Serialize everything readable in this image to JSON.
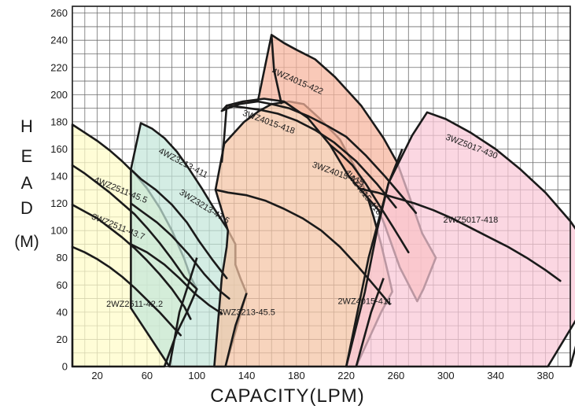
{
  "chart_data": {
    "type": "line",
    "title": "",
    "ylabel_letters": [
      "H",
      "E",
      "A",
      "D"
    ],
    "ylabel_unit": "(M)",
    "xlabel": "CAPACITY(LPM)",
    "x_ticks": [
      "20",
      "60",
      "100",
      "140",
      "180",
      "220",
      "260",
      "300",
      "340",
      "380"
    ],
    "y_ticks": [
      "0",
      "20",
      "40",
      "60",
      "80",
      "100",
      "120",
      "140",
      "160",
      "180",
      "200",
      "220",
      "240",
      "260"
    ],
    "grid": true,
    "x_range": [
      0,
      400
    ],
    "y_range": [
      0,
      265
    ],
    "regions": [
      {
        "name": "2WZ2511",
        "color": "#fffcc8",
        "outline": [
          [
            0,
            0
          ],
          [
            0,
            178
          ],
          [
            10,
            172
          ],
          [
            20,
            166
          ],
          [
            30,
            159
          ],
          [
            40,
            151
          ],
          [
            50,
            142
          ],
          [
            60,
            131
          ],
          [
            70,
            117
          ],
          [
            80,
            100
          ],
          [
            90,
            79
          ],
          [
            95,
            66
          ],
          [
            100,
            57
          ],
          [
            92,
            40
          ],
          [
            84,
            25
          ],
          [
            74,
            0
          ]
        ]
      },
      {
        "name": "2WZ3213",
        "color": "#c4e6d9",
        "outline": [
          [
            47,
            43
          ],
          [
            47,
            55
          ],
          [
            47,
            90
          ],
          [
            47,
            120
          ],
          [
            47,
            145
          ],
          [
            55,
            179
          ],
          [
            64,
            175
          ],
          [
            74,
            168
          ],
          [
            84,
            158
          ],
          [
            94,
            145
          ],
          [
            104,
            131
          ],
          [
            114,
            116
          ],
          [
            124,
            102
          ],
          [
            131,
            90
          ],
          [
            131,
            75
          ],
          [
            135,
            65
          ],
          [
            140,
            54
          ],
          [
            123,
            0
          ],
          [
            78,
            0
          ]
        ]
      },
      {
        "name": "2WZ4015",
        "color": "#f4c4a4",
        "outline": [
          [
            114,
            0
          ],
          [
            120,
            65
          ],
          [
            124,
            88
          ],
          [
            125,
            100
          ],
          [
            115,
            130
          ],
          [
            122,
            164
          ],
          [
            138,
            180
          ],
          [
            150,
            188
          ],
          [
            160,
            193
          ],
          [
            174,
            195
          ],
          [
            186,
            193
          ],
          [
            198,
            183
          ],
          [
            215,
            167
          ],
          [
            228,
            145
          ],
          [
            236,
            128
          ],
          [
            242,
            110
          ],
          [
            248,
            90
          ],
          [
            254,
            67
          ],
          [
            257,
            55
          ],
          [
            248,
            40
          ],
          [
            228,
            0
          ]
        ]
      },
      {
        "name": "4WZ4015",
        "color": "#f6b49c",
        "outline": [
          [
            120,
            188
          ],
          [
            125,
            190
          ],
          [
            134,
            193
          ],
          [
            149,
            195
          ],
          [
            160,
            244
          ],
          [
            170,
            238
          ],
          [
            180,
            233
          ],
          [
            195,
            226
          ],
          [
            211,
            213
          ],
          [
            232,
            192
          ],
          [
            250,
            168
          ],
          [
            261,
            150
          ],
          [
            270,
            127
          ],
          [
            281,
            98
          ],
          [
            292,
            80
          ],
          [
            282,
            57
          ],
          [
            277,
            48
          ],
          [
            263,
            73
          ],
          [
            251,
            104
          ],
          [
            246,
            115
          ],
          [
            222,
            140
          ],
          [
            207,
            163
          ],
          [
            189,
            183
          ],
          [
            170,
            195
          ],
          [
            154,
            197
          ],
          [
            137,
            195
          ],
          [
            124,
            192
          ]
        ]
      },
      {
        "name": "3WZ5017",
        "color": "#f9c8d7",
        "outline": [
          [
            220,
            0
          ],
          [
            235,
            55
          ],
          [
            245,
            101
          ],
          [
            254,
            135
          ],
          [
            273,
            170
          ],
          [
            285,
            187
          ],
          [
            300,
            182
          ],
          [
            320,
            172
          ],
          [
            340,
            160
          ],
          [
            360,
            145
          ],
          [
            380,
            128
          ],
          [
            400,
            107
          ],
          [
            415,
            87
          ],
          [
            428,
            68
          ],
          [
            415,
            50
          ],
          [
            382,
            0
          ]
        ]
      }
    ],
    "boundaries": [
      {
        "name": "2WZ2511 right",
        "points": [
          [
            100,
            57
          ],
          [
            92,
            40
          ],
          [
            84,
            25
          ],
          [
            74,
            0
          ]
        ]
      },
      {
        "name": "2WZ3213 right",
        "points": [
          [
            140,
            54
          ],
          [
            131,
            30
          ],
          [
            123,
            0
          ]
        ]
      },
      {
        "name": "2WZ4015 left",
        "points": [
          [
            78,
            0
          ],
          [
            86,
            40
          ],
          [
            100,
            80
          ]
        ]
      },
      {
        "name": "2WZ4015 right",
        "points": [
          [
            250,
            65
          ],
          [
            240,
            40
          ],
          [
            228,
            0
          ]
        ]
      },
      {
        "name": "3WZ5017 left",
        "points": [
          [
            220,
            0
          ],
          [
            238,
            80
          ],
          [
            254,
            135
          ],
          [
            265,
            160
          ]
        ]
      },
      {
        "name": "3WZ5017 right",
        "points": [
          [
            428,
            68
          ],
          [
            415,
            50
          ],
          [
            400,
            0
          ]
        ]
      },
      {
        "name": "4WZ4015 left",
        "points": [
          [
            168,
            193
          ],
          [
            162,
            218
          ],
          [
            160,
            244
          ]
        ]
      },
      {
        "name": "3WZ4015 left",
        "points": [
          [
            124,
            192
          ],
          [
            122,
            169
          ],
          [
            120,
            150
          ]
        ]
      }
    ],
    "curves": [
      {
        "name": "4WZ2511-45.5",
        "points": [
          [
            0,
            148
          ],
          [
            10,
            142
          ],
          [
            20,
            135
          ],
          [
            30,
            128
          ],
          [
            40,
            120
          ],
          [
            50,
            112
          ],
          [
            60,
            102
          ],
          [
            70,
            91
          ],
          [
            80,
            79
          ],
          [
            90,
            66
          ],
          [
            100,
            57
          ]
        ]
      },
      {
        "name": "3WZ2511-43.7",
        "points": [
          [
            0,
            119
          ],
          [
            10,
            114
          ],
          [
            20,
            109
          ],
          [
            30,
            102
          ],
          [
            40,
            95
          ],
          [
            50,
            87
          ],
          [
            60,
            78
          ],
          [
            70,
            68
          ],
          [
            80,
            57
          ],
          [
            90,
            44
          ],
          [
            95,
            35
          ]
        ]
      },
      {
        "name": "2WZ2511-42.2",
        "points": [
          [
            0,
            88
          ],
          [
            10,
            84
          ],
          [
            20,
            79
          ],
          [
            30,
            73
          ],
          [
            40,
            66
          ],
          [
            50,
            58
          ],
          [
            60,
            49
          ],
          [
            70,
            40
          ],
          [
            80,
            30
          ],
          [
            87,
            23
          ]
        ]
      },
      {
        "name": "4WZ3213-411",
        "points": [
          [
            47,
            145
          ],
          [
            55,
            138
          ],
          [
            67,
            130
          ],
          [
            80,
            119
          ],
          [
            92,
            106
          ],
          [
            102,
            92
          ],
          [
            113,
            78
          ],
          [
            124,
            65
          ]
        ]
      },
      {
        "name": "3WZ3213-47.5",
        "points": [
          [
            47,
            120
          ],
          [
            56,
            114
          ],
          [
            68,
            106
          ],
          [
            80,
            96
          ],
          [
            93,
            83
          ],
          [
            106,
            68
          ],
          [
            118,
            56
          ],
          [
            126,
            50
          ]
        ]
      },
      {
        "name": "2WZ3213-45.5",
        "points": [
          [
            47,
            90
          ],
          [
            60,
            84
          ],
          [
            74,
            75
          ],
          [
            86,
            65
          ],
          [
            98,
            54
          ],
          [
            110,
            45
          ],
          [
            120,
            39
          ]
        ]
      },
      {
        "name": "4WZ4015-422",
        "points": [
          [
            149,
            195
          ],
          [
            160,
            193
          ],
          [
            174,
            190
          ],
          [
            190,
            184
          ],
          [
            205,
            177
          ],
          [
            220,
            169
          ],
          [
            236,
            155
          ],
          [
            251,
            140
          ],
          [
            265,
            125
          ],
          [
            276,
            113
          ]
        ]
      },
      {
        "name": "3WZ4015-418",
        "points": [
          [
            124,
            192
          ],
          [
            134,
            191
          ],
          [
            150,
            189
          ],
          [
            165,
            186
          ],
          [
            180,
            181
          ],
          [
            195,
            174
          ],
          [
            210,
            165
          ],
          [
            228,
            151
          ],
          [
            245,
            134
          ],
          [
            260,
            117
          ]
        ]
      },
      {
        "name": "3WZ4015-415",
        "points": [
          [
            115,
            130
          ],
          [
            125,
            128
          ],
          [
            140,
            126
          ],
          [
            155,
            122
          ],
          [
            170,
            116
          ],
          [
            185,
            109
          ],
          [
            200,
            100
          ],
          [
            215,
            88
          ],
          [
            230,
            73
          ],
          [
            244,
            58
          ],
          [
            255,
            46
          ]
        ]
      },
      {
        "name": "4WZ4015-418",
        "points": [
          [
            207,
            163
          ],
          [
            215,
            157
          ],
          [
            225,
            148
          ],
          [
            236,
            134
          ],
          [
            247,
            118
          ],
          [
            258,
            102
          ],
          [
            270,
            84
          ]
        ]
      },
      {
        "name": "2WZ5017-418",
        "points": [
          [
            230,
            131
          ],
          [
            245,
            128
          ],
          [
            260,
            124
          ],
          [
            275,
            120
          ],
          [
            290,
            115
          ],
          [
            305,
            109
          ],
          [
            320,
            102
          ],
          [
            335,
            95
          ],
          [
            350,
            88
          ],
          [
            365,
            80
          ],
          [
            380,
            71
          ],
          [
            392,
            63
          ]
        ]
      }
    ],
    "labels": [
      {
        "text": "4WZ2511-45.5",
        "x": 38,
        "y": 128,
        "rot": 22
      },
      {
        "text": "3WZ2511-43.7",
        "x": 36,
        "y": 101,
        "rot": 22
      },
      {
        "text": "2WZ2511-42.2",
        "x": 50,
        "y": 44,
        "rot": 0
      },
      {
        "text": "4WZ3213-411",
        "x": 88,
        "y": 148,
        "rot": 28
      },
      {
        "text": "3WZ3213-47.5",
        "x": 105,
        "y": 116,
        "rot": 32
      },
      {
        "text": "2WZ3213-45.5",
        "x": 140,
        "y": 38,
        "rot": 0
      },
      {
        "text": "4WZ4015-422",
        "x": 180,
        "y": 208,
        "rot": 23
      },
      {
        "text": "3WZ4015-418",
        "x": 157,
        "y": 178,
        "rot": 20
      },
      {
        "text": "3WZ4015-415",
        "x": 213,
        "y": 140,
        "rot": 20
      },
      {
        "text": "4WZ4015-418",
        "x": 232,
        "y": 127,
        "rot": 52
      },
      {
        "text": "3WZ5017-430",
        "x": 320,
        "y": 160,
        "rot": 21
      },
      {
        "text": "2WZ5017-418",
        "x": 320,
        "y": 106,
        "rot": 0
      },
      {
        "text": "2WZ4015-411",
        "x": 235,
        "y": 46,
        "rot": 0
      }
    ]
  }
}
